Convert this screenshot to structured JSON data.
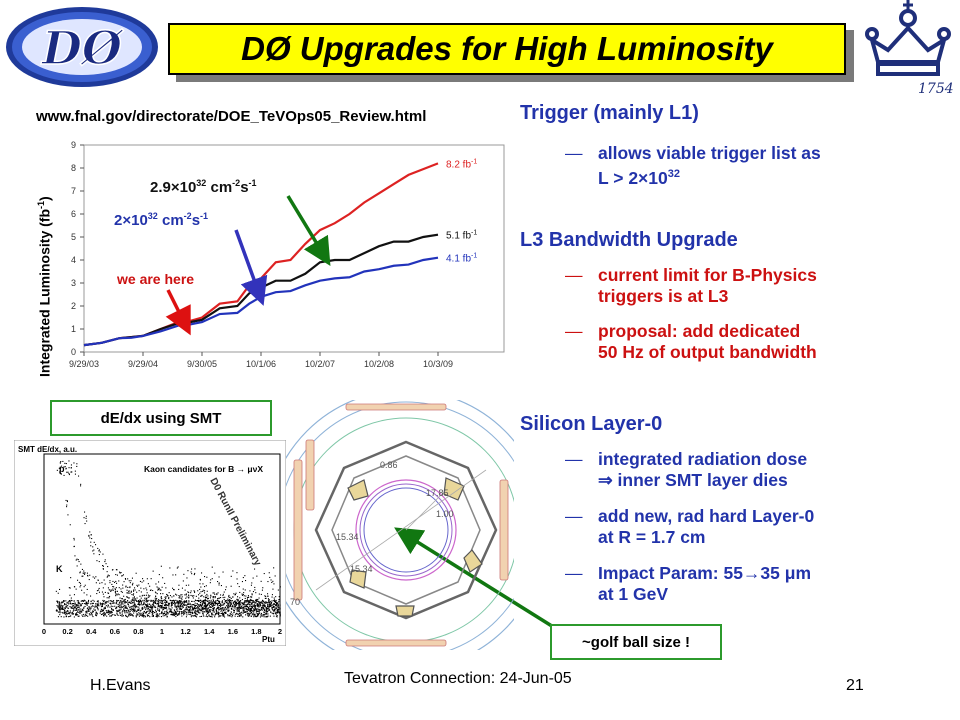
{
  "slide": {
    "title": "DØ Upgrades for High Luminosity",
    "url": "www.fnal.gov/directorate/DOE_TeVOps05_Review.html",
    "footer_left": "H.Evans",
    "footer_center": "Tevatron Connection: 24-Jun-05",
    "page_number": "21",
    "d0_logo_text": "DØ",
    "crest_text": "1754"
  },
  "sections": {
    "trigger": {
      "heading": "Trigger (mainly L1)",
      "b1_line1": "allows viable trigger list as",
      "b1_line2": "L > 2×10",
      "b1_sup": "32"
    },
    "l3": {
      "heading": "L3 Bandwidth Upgrade",
      "b1_line1": "current limit for B-Physics",
      "b1_line2": "triggers is at L3",
      "b2_line1": "proposal: add dedicated",
      "b2_line2": "50 Hz of output bandwidth"
    },
    "silicon": {
      "heading": "Silicon Layer-0",
      "b1_line1": "integrated radiation dose",
      "b1_line2": "⇒ inner SMT layer dies",
      "b2_line1": "add new, rad hard Layer-0",
      "b2_line2": "at R = 1.7 cm",
      "b3_line1": "Impact Param: 55→35 μm",
      "b3_line2": "at 1 GeV"
    }
  },
  "annotations": {
    "lumi_29": "2.9×10",
    "lumi_29_exp": "32",
    "lumi_2": "2×10",
    "lumi_2_exp": "32",
    "lumi_unit_a": " cm",
    "lumi_unit_a_exp": "-2",
    "lumi_unit_b": "s",
    "lumi_unit_b_exp": "-1",
    "we_are_here": "we are here",
    "dedx_label": "dE/dx using SMT",
    "golf_label": "~golf ball size !"
  },
  "dedx_plot": {
    "ylabel": "SMT dE/dx, a.u.",
    "subtitle": "Kaon candidates for B → μνX",
    "watermark": "D0 RunII Preliminary",
    "particle_labels": [
      "p",
      "K",
      "π"
    ],
    "x_ticks": [
      "0",
      "0.2",
      "0.4",
      "0.6",
      "0.8",
      "1",
      "1.2",
      "1.4",
      "1.6",
      "1.8",
      "2"
    ],
    "xlabel": "Ptu"
  },
  "detector": {
    "dims": [
      "0.86",
      "17.85",
      "1.00",
      "15.34",
      "15.34",
      "70"
    ]
  },
  "chart_data": {
    "type": "line",
    "ylabel": "Integrated Luminosity (fb",
    "ylabel_sup": "-1",
    "ylabel_end": ")",
    "ylim": [
      0,
      9
    ],
    "y_ticks": [
      0,
      1,
      2,
      3,
      4,
      5,
      6,
      7,
      8,
      9
    ],
    "x_tick_labels": [
      "9/29/03",
      "9/29/04",
      "9/30/05",
      "10/1/06",
      "10/2/07",
      "10/2/08",
      "10/3/09"
    ],
    "x_range": [
      0,
      6
    ],
    "grid": false,
    "series": [
      {
        "name": "8.2 fb-1",
        "color": "#dd2222",
        "x": [
          0,
          0.3,
          0.6,
          0.8,
          1,
          1.3,
          1.6,
          1.8,
          2,
          2.3,
          2.6,
          2.8,
          3,
          3.25,
          3.5,
          3.75,
          4,
          4.25,
          4.5,
          4.75,
          5,
          5.25,
          5.5,
          5.75,
          6
        ],
        "y": [
          0.3,
          0.4,
          0.6,
          0.65,
          0.7,
          1.0,
          1.3,
          1.35,
          1.5,
          2.1,
          2.2,
          2.9,
          3.2,
          3.9,
          4.0,
          4.7,
          5.3,
          5.6,
          6.0,
          6.5,
          6.9,
          7.3,
          7.7,
          7.95,
          8.2
        ]
      },
      {
        "name": "5.1 fb-1",
        "color": "#111111",
        "x": [
          0,
          0.3,
          0.6,
          0.8,
          1,
          1.3,
          1.6,
          1.8,
          2,
          2.3,
          2.6,
          2.8,
          3,
          3.25,
          3.5,
          3.75,
          4,
          4.25,
          4.5,
          4.75,
          5,
          5.25,
          5.5,
          5.75,
          6
        ],
        "y": [
          0.3,
          0.4,
          0.6,
          0.65,
          0.7,
          1.0,
          1.25,
          1.3,
          1.4,
          1.9,
          2.0,
          2.55,
          2.8,
          3.1,
          3.1,
          3.4,
          3.9,
          4.0,
          4.0,
          4.3,
          4.6,
          4.8,
          4.8,
          5.0,
          5.1
        ]
      },
      {
        "name": "4.1 fb-1",
        "color": "#2233bb",
        "x": [
          0,
          0.3,
          0.6,
          0.8,
          1,
          1.3,
          1.6,
          1.8,
          2,
          2.3,
          2.6,
          2.8,
          3,
          3.25,
          3.5,
          3.75,
          4,
          4.25,
          4.5,
          4.75,
          5,
          5.25,
          5.5,
          5.75,
          6
        ],
        "y": [
          0.3,
          0.4,
          0.6,
          0.62,
          0.7,
          0.9,
          1.15,
          1.2,
          1.3,
          1.65,
          1.7,
          2.1,
          2.4,
          2.6,
          2.65,
          2.9,
          3.1,
          3.2,
          3.25,
          3.5,
          3.6,
          3.75,
          3.8,
          4.0,
          4.1
        ]
      }
    ],
    "series_labels": [
      "8.2 fb",
      "5.1 fb",
      "4.1 fb"
    ],
    "series_label_sup": "-1"
  }
}
